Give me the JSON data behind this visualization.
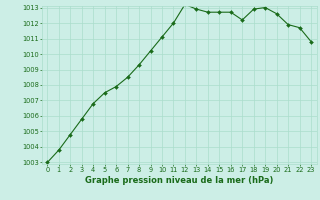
{
  "x": [
    0,
    1,
    2,
    3,
    4,
    5,
    6,
    7,
    8,
    9,
    10,
    11,
    12,
    13,
    14,
    15,
    16,
    17,
    18,
    19,
    20,
    21,
    22,
    23
  ],
  "y": [
    1003.0,
    1003.8,
    1004.8,
    1005.8,
    1006.8,
    1007.5,
    1007.9,
    1008.5,
    1009.3,
    1010.2,
    1011.1,
    1012.0,
    1013.2,
    1012.9,
    1012.7,
    1012.7,
    1012.7,
    1012.2,
    1012.9,
    1013.0,
    1012.6,
    1011.9,
    1011.7,
    1010.8
  ],
  "line_color": "#1a6b1a",
  "marker": "D",
  "marker_size": 2.0,
  "bg_color": "#cceee6",
  "grid_color": "#aaddcc",
  "xlabel": "Graphe pression niveau de la mer (hPa)",
  "ylim": [
    1003,
    1013
  ],
  "xlim": [
    -0.5,
    23.5
  ],
  "yticks": [
    1003,
    1004,
    1005,
    1006,
    1007,
    1008,
    1009,
    1010,
    1011,
    1012,
    1013
  ],
  "xticks": [
    0,
    1,
    2,
    3,
    4,
    5,
    6,
    7,
    8,
    9,
    10,
    11,
    12,
    13,
    14,
    15,
    16,
    17,
    18,
    19,
    20,
    21,
    22,
    23
  ],
  "tick_fontsize": 4.8,
  "label_fontsize": 6.0,
  "tick_color": "#1a6b1a",
  "label_color": "#1a6b1a"
}
